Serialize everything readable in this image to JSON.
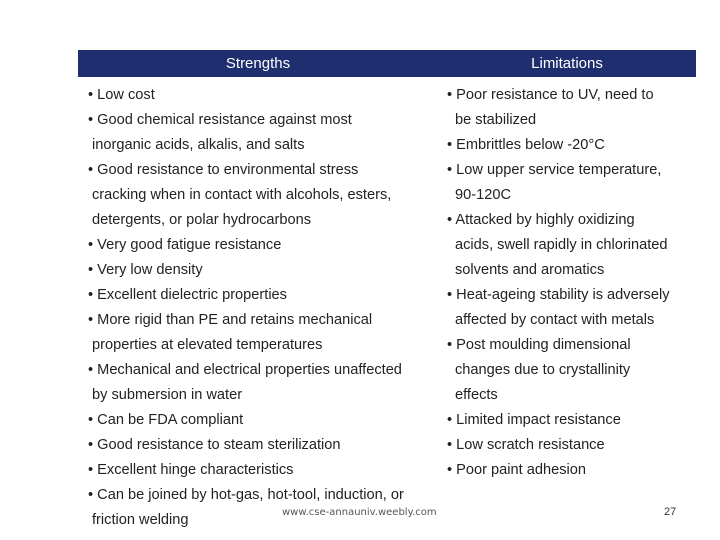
{
  "header": {
    "strengths_label": "Strengths",
    "limitations_label": "Limitations",
    "bar_color": "#1f2e6e"
  },
  "strengths": [
    "• Low cost",
    "• Good chemical resistance against most",
    "inorganic acids, alkalis, and salts",
    "• Good resistance to environmental stress",
    "cracking when in contact with alcohols, esters,",
    "detergents, or polar hydrocarbons",
    "• Very good fatigue resistance",
    "• Very low density",
    "• Excellent dielectric properties",
    "• More rigid than PE and retains mechanical",
    "properties at elevated temperatures",
    "• Mechanical and electrical properties unaffected",
    "by submersion in water",
    "• Can be FDA compliant",
    "• Good resistance to steam sterilization",
    "• Excellent hinge characteristics",
    "• Can be joined by hot-gas, hot-tool, induction, or",
    "friction welding"
  ],
  "limitations": [
    "• Poor resistance to UV, need to",
    "be stabilized",
    "• Embrittles below -20°C",
    "• Low upper service temperature,",
    "90-120C",
    "• Attacked by highly oxidizing",
    "acids, swell rapidly in chlorinated",
    "solvents and aromatics",
    "• Heat-ageing stability is adversely",
    "affected by contact with metals",
    "• Post moulding dimensional",
    "changes due to crystallinity",
    "effects",
    "• Limited impact resistance",
    "• Low scratch resistance",
    "• Poor paint adhesion"
  ],
  "footer": {
    "url": "www.cse-annauniv.weebly.com",
    "page_number": "27"
  }
}
